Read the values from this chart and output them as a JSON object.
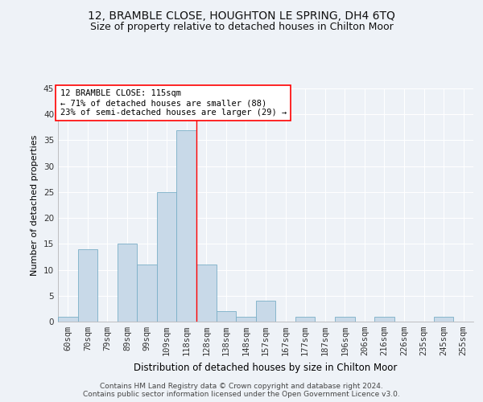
{
  "title": "12, BRAMBLE CLOSE, HOUGHTON LE SPRING, DH4 6TQ",
  "subtitle": "Size of property relative to detached houses in Chilton Moor",
  "xlabel": "Distribution of detached houses by size in Chilton Moor",
  "ylabel": "Number of detached properties",
  "footer1": "Contains HM Land Registry data © Crown copyright and database right 2024.",
  "footer2": "Contains public sector information licensed under the Open Government Licence v3.0.",
  "categories": [
    "60sqm",
    "70sqm",
    "79sqm",
    "89sqm",
    "99sqm",
    "109sqm",
    "118sqm",
    "128sqm",
    "138sqm",
    "148sqm",
    "157sqm",
    "167sqm",
    "177sqm",
    "187sqm",
    "196sqm",
    "206sqm",
    "216sqm",
    "226sqm",
    "235sqm",
    "245sqm",
    "255sqm"
  ],
  "values": [
    1,
    14,
    0,
    15,
    11,
    25,
    37,
    11,
    2,
    1,
    4,
    0,
    1,
    0,
    1,
    0,
    1,
    0,
    0,
    1,
    0
  ],
  "bar_color": "#c8d9e8",
  "bar_edge_color": "#7aafc7",
  "reference_line_x": 6.5,
  "annotation_text1": "12 BRAMBLE CLOSE: 115sqm",
  "annotation_text2": "← 71% of detached houses are smaller (88)",
  "annotation_text3": "23% of semi-detached houses are larger (29) →",
  "annotation_box_color": "white",
  "annotation_box_edge": "red",
  "vline_color": "red",
  "ylim": [
    0,
    45
  ],
  "yticks": [
    0,
    5,
    10,
    15,
    20,
    25,
    30,
    35,
    40,
    45
  ],
  "background_color": "#eef2f7",
  "grid_color": "white",
  "title_fontsize": 10,
  "subtitle_fontsize": 9,
  "xlabel_fontsize": 8.5,
  "ylabel_fontsize": 8,
  "tick_fontsize": 7.5,
  "annotation_fontsize": 7.5,
  "footer_fontsize": 6.5
}
